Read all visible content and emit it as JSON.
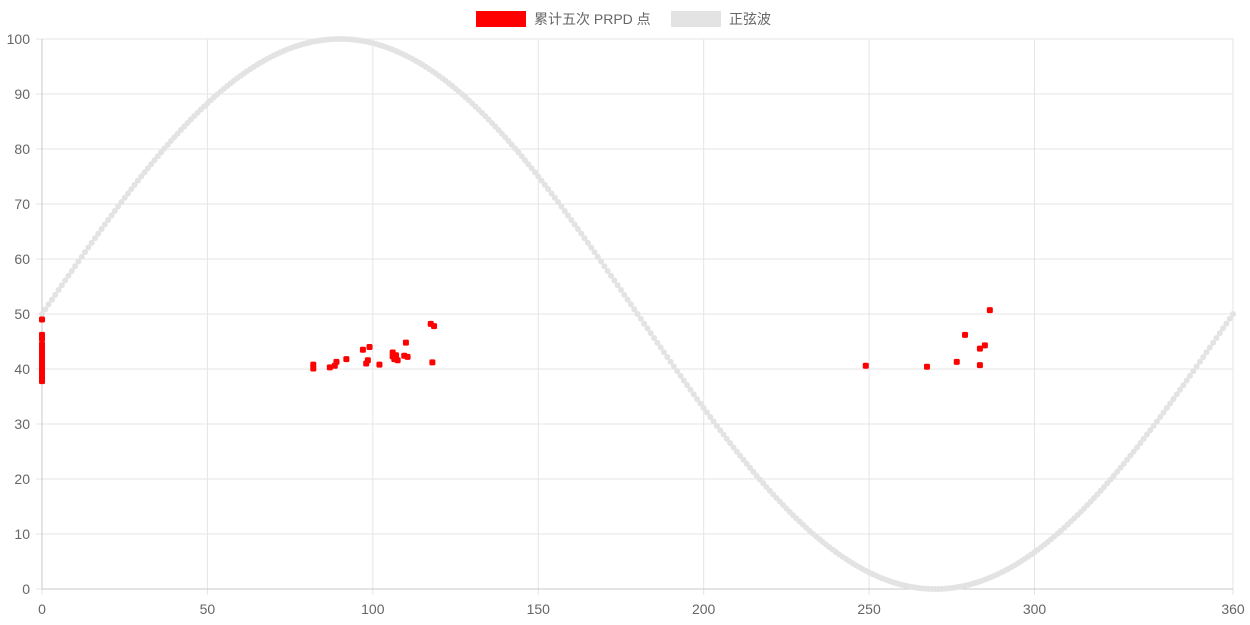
{
  "chart_data": {
    "type": "scatter",
    "xlim": [
      0,
      360
    ],
    "ylim": [
      0,
      100
    ],
    "x_ticks": [
      0,
      50,
      100,
      150,
      200,
      250,
      300,
      360
    ],
    "y_ticks": [
      0,
      10,
      20,
      30,
      40,
      50,
      60,
      70,
      80,
      90,
      100
    ],
    "grid": true,
    "legend_position": "top-center",
    "series": [
      {
        "name": "累计五次 PRPD 点",
        "color": "#ff0000",
        "marker": "point",
        "points": [
          [
            0,
            49
          ],
          [
            0,
            46.2
          ],
          [
            0,
            45.5
          ],
          [
            0,
            44.5
          ],
          [
            0,
            43.8
          ],
          [
            0,
            43.2
          ],
          [
            0,
            42.6
          ],
          [
            0,
            42.1
          ],
          [
            0,
            41.6
          ],
          [
            0,
            41.1
          ],
          [
            0,
            40.6
          ],
          [
            0,
            40.1
          ],
          [
            0,
            39.6
          ],
          [
            0,
            39.1
          ],
          [
            0,
            38.6
          ],
          [
            0,
            38.1
          ],
          [
            0,
            37.8
          ],
          [
            82,
            40.8
          ],
          [
            82,
            40.1
          ],
          [
            87,
            40.3
          ],
          [
            88.5,
            40.6
          ],
          [
            89,
            41.3
          ],
          [
            92,
            41.8
          ],
          [
            97,
            43.5
          ],
          [
            98,
            41.0
          ],
          [
            98.5,
            41.6
          ],
          [
            99,
            44.0
          ],
          [
            102,
            40.8
          ],
          [
            106,
            43.0
          ],
          [
            106,
            42.3
          ],
          [
            106.5,
            41.8
          ],
          [
            107,
            42.5
          ],
          [
            107.5,
            41.6
          ],
          [
            109.5,
            42.4
          ],
          [
            110,
            44.8
          ],
          [
            110.5,
            42.2
          ],
          [
            117.5,
            48.2
          ],
          [
            118,
            41.2
          ],
          [
            118.5,
            47.8
          ],
          [
            249,
            40.6
          ],
          [
            267.5,
            40.4
          ],
          [
            276.5,
            41.3
          ],
          [
            279,
            46.2
          ],
          [
            283.5,
            43.7
          ],
          [
            283.5,
            40.7
          ],
          [
            285,
            44.3
          ],
          [
            286.5,
            50.7
          ]
        ]
      },
      {
        "name": "正弦波",
        "color": "#e3e3e3",
        "marker": "point",
        "function": "50 + 50 * sin(x in degrees)",
        "x_step": 1
      }
    ]
  }
}
